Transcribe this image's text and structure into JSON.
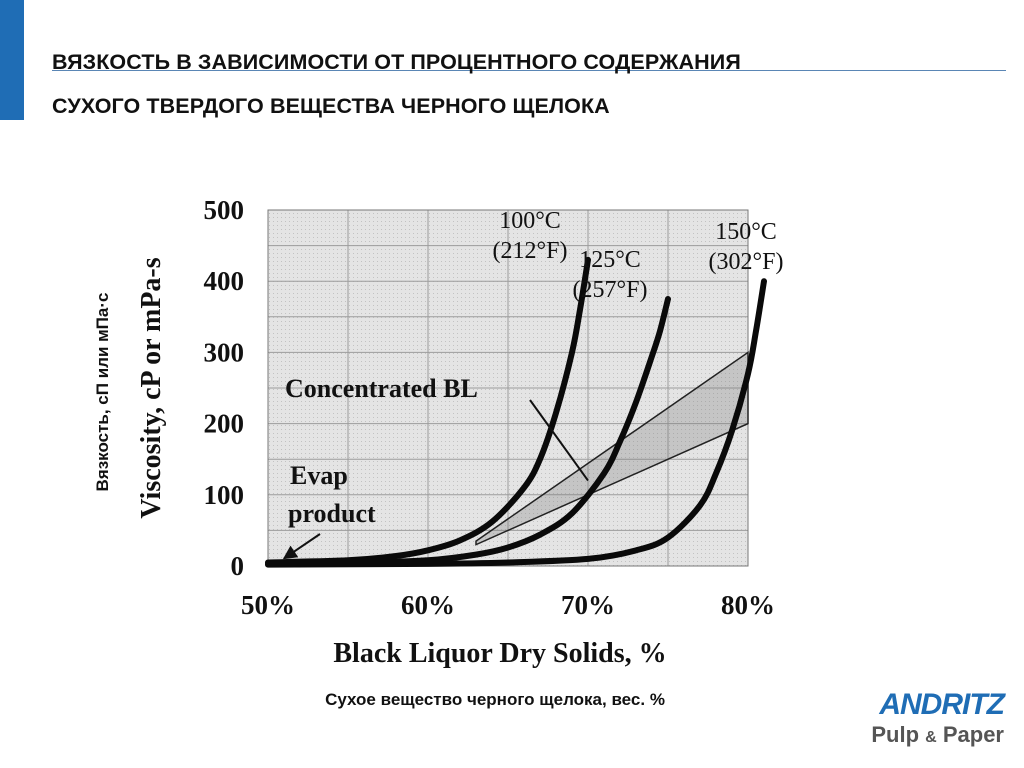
{
  "slide": {
    "title_line1": "ВЯЗКОСТЬ В ЗАВИСИМОСТИ ОТ ПРОЦЕНТНОГО СОДЕРЖАНИЯ",
    "title_line2": "СУХОГО ТВЕРДОГО ВЕЩЕСТВА ЧЕРНОГО ЩЕЛОКА",
    "ylabel_ru": "Вязкость, сП или мПа·с",
    "xlabel_ru": "Сухое вещество черного щелока, вес. %",
    "accent_color": "#1f6db5"
  },
  "logo": {
    "brand": "ANDRITZ",
    "sub_left": "Pulp",
    "sub_amp": "&",
    "sub_right": "Paper"
  },
  "chart_data": {
    "type": "line",
    "xlabel": "Black Liquor Dry Solids, %",
    "ylabel": "Viscosity, cP or mPa-s",
    "xlim": [
      50,
      80
    ],
    "ylim": [
      0,
      500
    ],
    "x_ticks": [
      50,
      60,
      70,
      80
    ],
    "x_tick_labels": [
      "50%",
      "60%",
      "70%",
      "80%"
    ],
    "y_ticks": [
      0,
      100,
      200,
      300,
      400,
      500
    ],
    "y_tick_labels": [
      "0",
      "100",
      "200",
      "300",
      "400",
      "500"
    ],
    "grid": true,
    "series": [
      {
        "name": "100°C (212°F)",
        "label_line1": "100°C",
        "label_line2": "(212°F)",
        "x": [
          50,
          55,
          58,
          60,
          62,
          64,
          66,
          67,
          68,
          69,
          69.5,
          70
        ],
        "y": [
          5,
          8,
          14,
          22,
          36,
          62,
          110,
          150,
          215,
          300,
          360,
          430
        ]
      },
      {
        "name": "125°C (257°F)",
        "label_line1": "125°C",
        "label_line2": "(257°F)",
        "x": [
          50,
          55,
          60,
          63,
          65,
          67,
          69,
          71,
          72,
          73,
          74,
          74.5,
          75
        ],
        "y": [
          3,
          4,
          8,
          16,
          26,
          44,
          74,
          130,
          175,
          230,
          295,
          330,
          375
        ]
      },
      {
        "name": "150°C (302°F)",
        "label_line1": "150°C",
        "label_line2": "(302°F)",
        "x": [
          50,
          60,
          65,
          70,
          73,
          75,
          77,
          78,
          79,
          80,
          80.5,
          81
        ],
        "y": [
          2,
          3,
          5,
          10,
          22,
          40,
          85,
          130,
          190,
          270,
          330,
          400
        ]
      }
    ],
    "bands": [
      {
        "name": "Concentrated BL",
        "polygon": [
          [
            63,
            35
          ],
          [
            80,
            300
          ],
          [
            80,
            200
          ],
          [
            63,
            30
          ]
        ]
      },
      {
        "name": "Evap product",
        "polygon": [
          [
            50,
            4
          ],
          [
            56,
            10
          ],
          [
            56,
            6
          ],
          [
            50,
            2
          ]
        ]
      }
    ],
    "annotations": [
      {
        "text": "Concentrated BL",
        "point_to": [
          70,
          120
        ]
      },
      {
        "text_line1": "Evap",
        "text_line2": "product",
        "point_to": [
          51,
          5
        ]
      }
    ]
  }
}
